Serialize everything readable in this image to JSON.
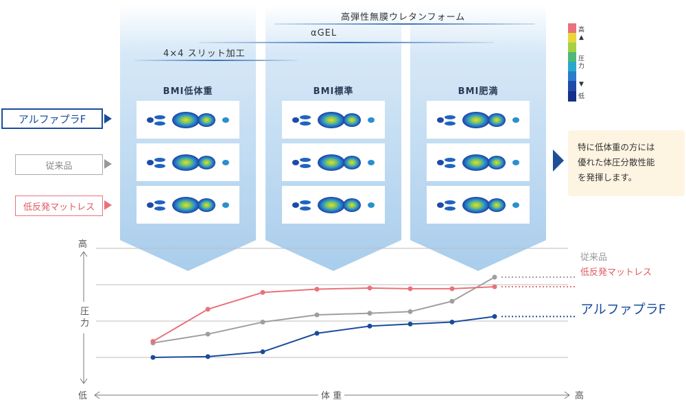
{
  "layers": {
    "high_resilience": "高弾性無膜ウレタンフォーム",
    "alpha_gel": "αGEL",
    "slit": "4×4 スリット加工"
  },
  "legend": {
    "alpha": "アルファプラF",
    "conventional": "従来品",
    "low_rebound": "低反発マットレス"
  },
  "columns": [
    "BMI低体重",
    "BMI標準",
    "BMI肥満"
  ],
  "scale": {
    "high": "高",
    "mid": "圧力",
    "low": "低"
  },
  "callout": [
    "特に低体重の方には",
    "優れた体圧分散性能",
    "を発揮します。"
  ],
  "colors": {
    "alpha": "#1a4c9c",
    "conventional": "#9e9e9e",
    "low_rebound": "#e8727a",
    "panel": "#cfe3f5"
  },
  "chart_data": {
    "type": "line",
    "title": "",
    "xlabel": "体 重",
    "ylabel": "圧 力",
    "x_low_label": "低",
    "x_high_label": "高",
    "y_high_label": "高",
    "y_low_label": "低",
    "x": [
      1,
      2,
      3,
      4,
      5,
      6,
      7,
      8
    ],
    "ylim": [
      0,
      6
    ],
    "grid": true,
    "series": [
      {
        "name": "従来品",
        "key": "conventional",
        "values": [
          0.9,
          1.45,
          2.2,
          2.65,
          2.75,
          2.85,
          3.5,
          5.0
        ]
      },
      {
        "name": "低反発マットレス",
        "key": "low_rebound",
        "values": [
          1.0,
          3.0,
          4.05,
          4.25,
          4.32,
          4.28,
          4.28,
          4.4
        ]
      },
      {
        "name": "アルファプラF",
        "key": "alpha",
        "values": [
          0.0,
          0.05,
          0.35,
          1.5,
          1.95,
          2.08,
          2.2,
          2.55
        ]
      }
    ]
  }
}
